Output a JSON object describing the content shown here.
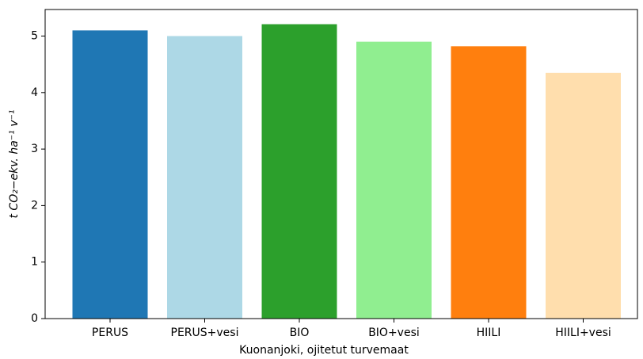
{
  "chart_data": {
    "type": "bar",
    "xlabel": "Kuonanjoki, ojitetut turvemaat",
    "ylabel": "t CO₂−ekv. ha⁻¹ v⁻¹",
    "categories": [
      "PERUS",
      "PERUS+vesi",
      "BIO",
      "BIO+vesi",
      "HIILI",
      "HIILI+vesi"
    ],
    "values": [
      5.1,
      5.0,
      5.21,
      4.9,
      4.82,
      4.35
    ],
    "colors": [
      "#1f77b4",
      "#add8e6",
      "#2ca02c",
      "#90ee90",
      "#ff7f0e",
      "#ffdead"
    ],
    "ylim": [
      0,
      5.47
    ],
    "yticks": [
      0,
      1,
      2,
      3,
      4,
      5
    ],
    "grid": false
  }
}
